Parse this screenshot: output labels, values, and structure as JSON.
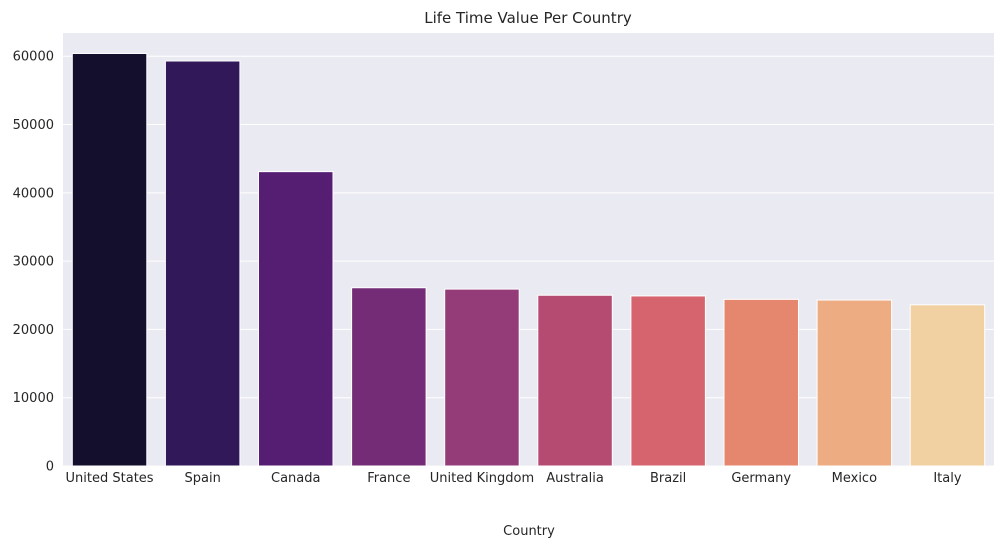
{
  "chart_data": {
    "type": "bar",
    "title": "Life Time Value Per Country",
    "xlabel": "Country",
    "ylabel": "",
    "categories": [
      "United States",
      "Spain",
      "Canada",
      "France",
      "United Kingdom",
      "Australia",
      "Brazil",
      "Germany",
      "Mexico",
      "Italy"
    ],
    "values": [
      60400,
      59300,
      43100,
      26100,
      25900,
      25000,
      24900,
      24400,
      24300,
      23600
    ],
    "colors": [
      "#140f2d",
      "#311859",
      "#561e72",
      "#752c76",
      "#943c78",
      "#b64b72",
      "#d5646e",
      "#e5876e",
      "#eeac83",
      "#f1d0a1"
    ],
    "ylim": [
      0,
      63400
    ],
    "yticks": [
      0,
      10000,
      20000,
      30000,
      40000,
      50000,
      60000
    ],
    "ytick_labels": [
      "0",
      "10000",
      "20000",
      "30000",
      "40000",
      "50000",
      "60000"
    ],
    "grid": true,
    "style": {
      "plot_background": "#eaeaf2",
      "grid_color": "#ffffff",
      "bar_edge_color": "#ffffff"
    }
  }
}
